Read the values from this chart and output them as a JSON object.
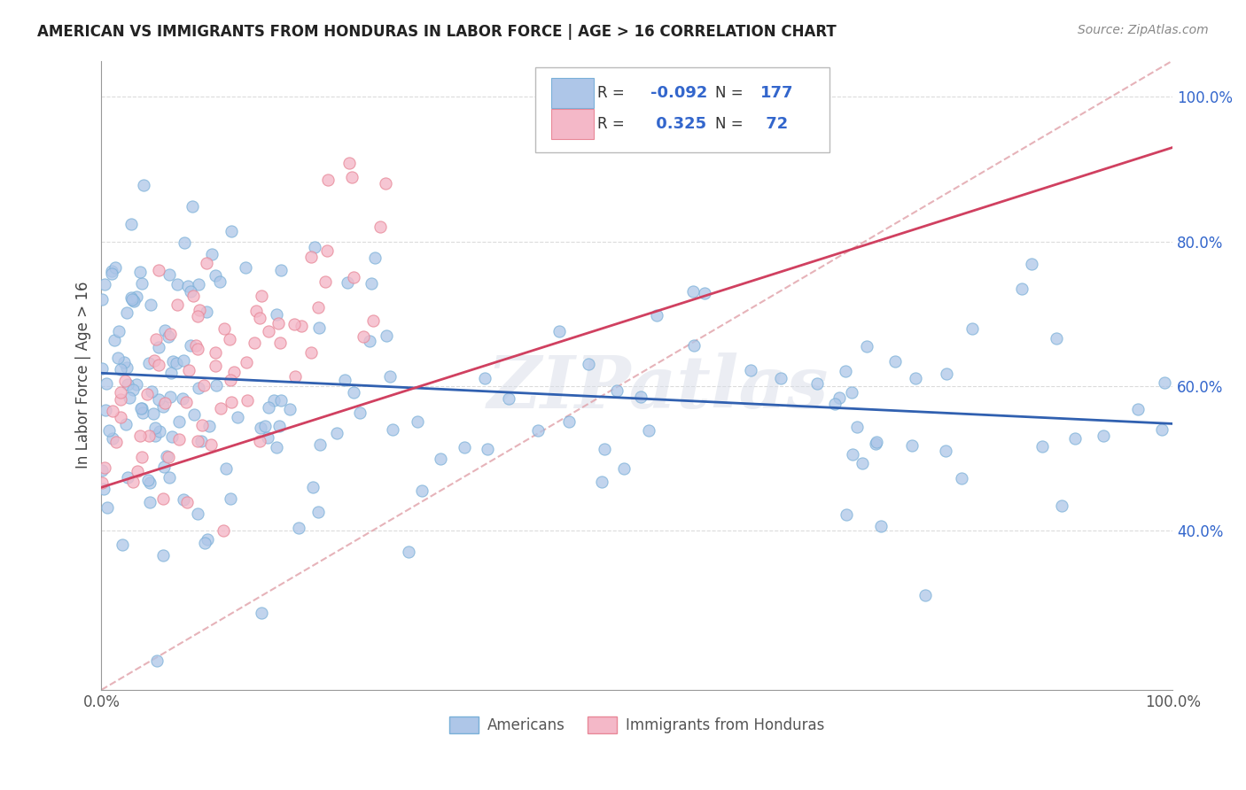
{
  "title": "AMERICAN VS IMMIGRANTS FROM HONDURAS IN LABOR FORCE | AGE > 16 CORRELATION CHART",
  "source": "Source: ZipAtlas.com",
  "ylabel": "In Labor Force | Age > 16",
  "xlim": [
    0,
    1
  ],
  "ylim": [
    0.18,
    1.05
  ],
  "ytick_labels": [
    "40.0%",
    "60.0%",
    "80.0%",
    "100.0%"
  ],
  "ytick_values": [
    0.4,
    0.6,
    0.8,
    1.0
  ],
  "xtick_labels": [
    "0.0%",
    "100.0%"
  ],
  "xtick_values": [
    0.0,
    1.0
  ],
  "american_color": "#aec6e8",
  "american_edge": "#7ab0d8",
  "honduras_color": "#f4b8c8",
  "honduras_edge": "#e88898",
  "blue_line_color": "#3060b0",
  "pink_line_color": "#d04060",
  "ref_line_color": "#e0a0a8",
  "grid_color": "#cccccc",
  "watermark": "ZIPatlas",
  "title_color": "#222222",
  "source_color": "#888888",
  "legend_text_color": "#3366cc",
  "legend_label_color": "#333333",
  "blue_line_x": [
    0.0,
    1.0
  ],
  "blue_line_y": [
    0.618,
    0.548
  ],
  "pink_line_x": [
    0.0,
    1.0
  ],
  "pink_line_y": [
    0.46,
    0.93
  ],
  "ref_line_x": [
    0.0,
    1.0
  ],
  "ref_line_y": [
    0.18,
    1.05
  ]
}
